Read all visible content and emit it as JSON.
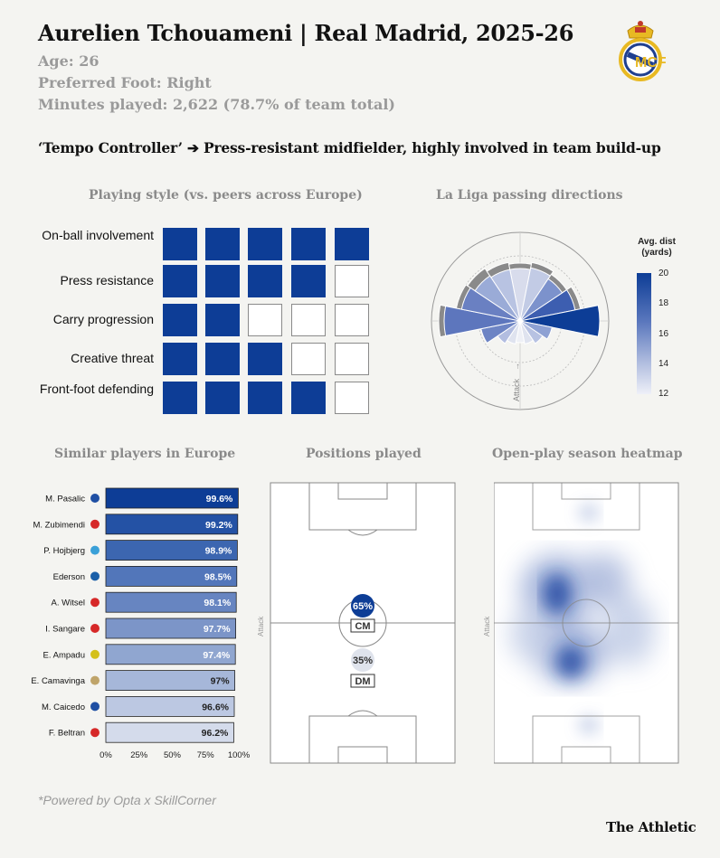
{
  "header": {
    "title": "Aurelien Tchouameni | Real Madrid, 2025-26",
    "age": "Age: 26",
    "foot": "Preferred Foot: Right",
    "minutes": "Minutes played: 2,622 (78.7% of team total)",
    "tagline": "‘Tempo Controller’ ➔ Press-resistant midfielder, highly involved in team build-up"
  },
  "sections": {
    "playing_style": "Playing style (vs. peers across Europe)",
    "passing": "La Liga passing directions",
    "similar": "Similar players in Europe",
    "positions": "Positions played",
    "heatmap": "Open-play season heatmap"
  },
  "playing_style": [
    {
      "label": "On-ball involvement",
      "level": 5
    },
    {
      "label": "Press resistance",
      "level": 4
    },
    {
      "label": "Carry progression",
      "level": 2
    },
    {
      "label": "Creative threat",
      "level": 3
    },
    {
      "label": "Front-foot defending",
      "level": 4
    }
  ],
  "legend": {
    "title": "Avg. dist (yards)",
    "ticks": [
      "20",
      "18",
      "16",
      "14",
      "12"
    ]
  },
  "attack_label": "Attack",
  "positions": [
    {
      "pct": "65%",
      "role": "CM"
    },
    {
      "pct": "35%",
      "role": "DM"
    }
  ],
  "colors": {
    "primary": "#0d3d96",
    "grid_off": "#ffffff",
    "muted_text": "#9a9a9a"
  },
  "chart_data": [
    {
      "type": "bar",
      "orientation": "horizontal",
      "title": "Similar players in Europe",
      "categories": [
        "M. Pasalic",
        "M. Zubimendi",
        "P. Hojbjerg",
        "Ederson",
        "A. Witsel",
        "I. Sangare",
        "E. Ampadu",
        "E. Camavinga",
        "M. Caicedo",
        "F. Beltran"
      ],
      "values": [
        99.6,
        99.2,
        98.9,
        98.5,
        98.1,
        97.7,
        97.4,
        97,
        96.6,
        96.2
      ],
      "value_labels": [
        "99.6%",
        "99.2%",
        "98.9%",
        "98.5%",
        "98.1%",
        "97.7%",
        "97.4%",
        "97%",
        "96.6%",
        "96.2%"
      ],
      "xticks": [
        "0%",
        "25%",
        "50%",
        "75%",
        "100%"
      ],
      "xlim": [
        0,
        100
      ],
      "grid": false
    },
    {
      "type": "rose",
      "title": "La Liga passing directions",
      "sector_count": 16,
      "orientation": "attack up",
      "color_scale": {
        "min": 12,
        "max": 20,
        "label": "Avg. dist (yards)"
      }
    }
  ],
  "footer": "*Powered by Opta x SkillCorner",
  "brand": "The Athletic"
}
